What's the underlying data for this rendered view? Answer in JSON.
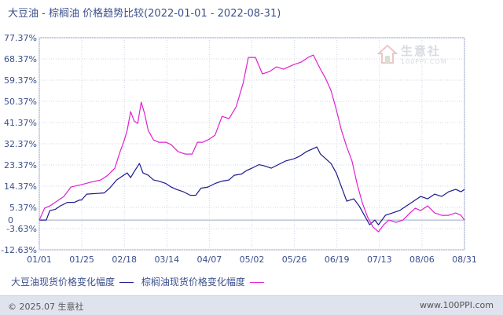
{
  "title": "大豆油 - 棕榈油 价格趋势比较(2022-01-01 - 2022-08-31)",
  "watermark": {
    "text": "生意社",
    "sub": "100PPI.COM"
  },
  "footer": {
    "copyright": "© 2025.07 生意社",
    "site": "www.100PPI.com"
  },
  "colors": {
    "series1": "#1a1a8c",
    "series2": "#e020d0",
    "axis": "#3b4f8c",
    "grid": "#cfd6e6"
  },
  "chart_data": {
    "type": "line",
    "title": "大豆油 - 棕榈油 价格趋势比较(2022-01-01 - 2022-08-31)",
    "xlabel": "",
    "ylabel": "",
    "x_ticks": [
      "01/01",
      "01/25",
      "02/18",
      "03/14",
      "04/07",
      "05/02",
      "05/26",
      "06/19",
      "07/13",
      "08/06",
      "08/31"
    ],
    "y_ticks": [
      "77.37%",
      "68.37%",
      "59.37%",
      "50.37%",
      "41.37%",
      "32.37%",
      "23.37%",
      "14.37%",
      "5.37%",
      "-3.63%",
      "-12.63%"
    ],
    "y_tick_values": [
      77.37,
      68.37,
      59.37,
      50.37,
      41.37,
      32.37,
      23.37,
      14.37,
      5.37,
      -3.63,
      -12.63
    ],
    "zero_label": "0",
    "ylim": [
      -12.63,
      77.37
    ],
    "xlim": [
      "2022-01-01",
      "2022-08-31"
    ],
    "grid": true,
    "legend_position": "bottom",
    "series": [
      {
        "name": "大豆油现货价格变化幅度",
        "points": [
          [
            "2022-01-01",
            0
          ],
          [
            "2022-01-05",
            0
          ],
          [
            "2022-01-07",
            4
          ],
          [
            "2022-01-10",
            4.5
          ],
          [
            "2022-01-13",
            6
          ],
          [
            "2022-01-17",
            7.5
          ],
          [
            "2022-01-21",
            7.5
          ],
          [
            "2022-01-24",
            8.5
          ],
          [
            "2022-01-25",
            8.5
          ],
          [
            "2022-01-28",
            11
          ],
          [
            "2022-02-07",
            11.5
          ],
          [
            "2022-02-10",
            13.5
          ],
          [
            "2022-02-14",
            17
          ],
          [
            "2022-02-18",
            19
          ],
          [
            "2022-02-20",
            20
          ],
          [
            "2022-02-22",
            18
          ],
          [
            "2022-02-24",
            20.5
          ],
          [
            "2022-02-27",
            24
          ],
          [
            "2022-03-01",
            20
          ],
          [
            "2022-03-04",
            19
          ],
          [
            "2022-03-07",
            17
          ],
          [
            "2022-03-10",
            16.5
          ],
          [
            "2022-03-14",
            15.5
          ],
          [
            "2022-03-17",
            14
          ],
          [
            "2022-03-20",
            13
          ],
          [
            "2022-03-24",
            12
          ],
          [
            "2022-03-28",
            10.5
          ],
          [
            "2022-03-31",
            10.5
          ],
          [
            "2022-04-03",
            13.5
          ],
          [
            "2022-04-07",
            14
          ],
          [
            "2022-04-11",
            15.5
          ],
          [
            "2022-04-15",
            16.5
          ],
          [
            "2022-04-19",
            17
          ],
          [
            "2022-04-22",
            19
          ],
          [
            "2022-04-26",
            19.5
          ],
          [
            "2022-04-29",
            21
          ],
          [
            "2022-05-02",
            22
          ],
          [
            "2022-05-06",
            23.5
          ],
          [
            "2022-05-09",
            23
          ],
          [
            "2022-05-13",
            22
          ],
          [
            "2022-05-17",
            23.5
          ],
          [
            "2022-05-21",
            25
          ],
          [
            "2022-05-26",
            26
          ],
          [
            "2022-05-29",
            27
          ],
          [
            "2022-06-02",
            29
          ],
          [
            "2022-06-05",
            30
          ],
          [
            "2022-06-08",
            31
          ],
          [
            "2022-06-10",
            28
          ],
          [
            "2022-06-13",
            26
          ],
          [
            "2022-06-16",
            24
          ],
          [
            "2022-06-19",
            20
          ],
          [
            "2022-06-22",
            14
          ],
          [
            "2022-06-25",
            8
          ],
          [
            "2022-06-29",
            9
          ],
          [
            "2022-07-02",
            6
          ],
          [
            "2022-07-05",
            2
          ],
          [
            "2022-07-08",
            -2
          ],
          [
            "2022-07-11",
            0
          ],
          [
            "2022-07-13",
            -2
          ],
          [
            "2022-07-17",
            2
          ],
          [
            "2022-07-21",
            3
          ],
          [
            "2022-07-25",
            4
          ],
          [
            "2022-07-29",
            6
          ],
          [
            "2022-08-02",
            8
          ],
          [
            "2022-08-06",
            10
          ],
          [
            "2022-08-10",
            9
          ],
          [
            "2022-08-14",
            11
          ],
          [
            "2022-08-18",
            10
          ],
          [
            "2022-08-22",
            12
          ],
          [
            "2022-08-26",
            13
          ],
          [
            "2022-08-29",
            12
          ],
          [
            "2022-08-31",
            13
          ]
        ]
      },
      {
        "name": "棕榈油现货价格变化幅度",
        "points": [
          [
            "2022-01-01",
            0
          ],
          [
            "2022-01-04",
            5
          ],
          [
            "2022-01-07",
            6
          ],
          [
            "2022-01-11",
            8
          ],
          [
            "2022-01-15",
            10
          ],
          [
            "2022-01-19",
            14
          ],
          [
            "2022-01-25",
            15
          ],
          [
            "2022-01-30",
            16
          ],
          [
            "2022-02-05",
            17
          ],
          [
            "2022-02-09",
            19
          ],
          [
            "2022-02-13",
            22
          ],
          [
            "2022-02-16",
            29
          ],
          [
            "2022-02-18",
            33
          ],
          [
            "2022-02-20",
            38
          ],
          [
            "2022-02-22",
            46
          ],
          [
            "2022-02-24",
            42
          ],
          [
            "2022-02-26",
            41
          ],
          [
            "2022-02-28",
            50
          ],
          [
            "2022-03-02",
            45
          ],
          [
            "2022-03-04",
            38
          ],
          [
            "2022-03-07",
            34
          ],
          [
            "2022-03-10",
            33
          ],
          [
            "2022-03-14",
            33
          ],
          [
            "2022-03-17",
            32
          ],
          [
            "2022-03-21",
            29
          ],
          [
            "2022-03-25",
            28
          ],
          [
            "2022-03-29",
            28
          ],
          [
            "2022-04-01",
            33
          ],
          [
            "2022-04-04",
            33
          ],
          [
            "2022-04-07",
            34
          ],
          [
            "2022-04-11",
            36
          ],
          [
            "2022-04-15",
            44
          ],
          [
            "2022-04-19",
            43
          ],
          [
            "2022-04-23",
            48
          ],
          [
            "2022-04-27",
            58
          ],
          [
            "2022-04-30",
            69
          ],
          [
            "2022-05-04",
            69
          ],
          [
            "2022-05-08",
            62
          ],
          [
            "2022-05-12",
            63
          ],
          [
            "2022-05-16",
            65
          ],
          [
            "2022-05-20",
            64
          ],
          [
            "2022-05-26",
            66
          ],
          [
            "2022-05-30",
            67
          ],
          [
            "2022-06-03",
            69
          ],
          [
            "2022-06-06",
            70
          ],
          [
            "2022-06-08",
            67
          ],
          [
            "2022-06-10",
            64
          ],
          [
            "2022-06-13",
            60
          ],
          [
            "2022-06-16",
            55
          ],
          [
            "2022-06-19",
            47
          ],
          [
            "2022-06-22",
            38
          ],
          [
            "2022-06-25",
            31
          ],
          [
            "2022-06-28",
            25
          ],
          [
            "2022-07-01",
            15
          ],
          [
            "2022-07-04",
            7
          ],
          [
            "2022-07-07",
            1
          ],
          [
            "2022-07-10",
            -3
          ],
          [
            "2022-07-13",
            -5
          ],
          [
            "2022-07-16",
            -2
          ],
          [
            "2022-07-19",
            0
          ],
          [
            "2022-07-23",
            -1
          ],
          [
            "2022-07-27",
            0
          ],
          [
            "2022-07-31",
            3
          ],
          [
            "2022-08-03",
            5
          ],
          [
            "2022-08-06",
            4
          ],
          [
            "2022-08-10",
            6
          ],
          [
            "2022-08-14",
            3
          ],
          [
            "2022-08-18",
            2
          ],
          [
            "2022-08-22",
            2
          ],
          [
            "2022-08-26",
            3
          ],
          [
            "2022-08-29",
            2
          ],
          [
            "2022-08-31",
            0
          ]
        ]
      }
    ]
  },
  "legend": {
    "items": [
      {
        "label": "大豆油现货价格变化幅度"
      },
      {
        "label": "棕榈油现货价格变化幅度"
      }
    ]
  }
}
